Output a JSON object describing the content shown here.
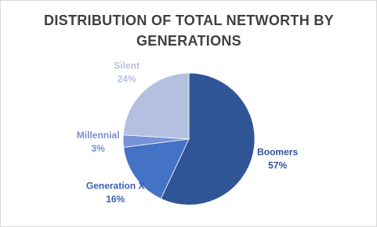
{
  "chart_data": {
    "type": "pie",
    "title": "DISTRIBUTION OF TOTAL NETWORTH BY GENERATIONS",
    "categories": [
      "Boomers",
      "Generation X",
      "Millennial",
      "Silent"
    ],
    "values": [
      57,
      16,
      3,
      24
    ],
    "value_labels": [
      "57%",
      "16%",
      "3%",
      "24%"
    ],
    "colors": [
      "#2f5597",
      "#4472c4",
      "#7891d6",
      "#b4c0e0"
    ],
    "label_colors": [
      "#2f5597",
      "#3a63b0",
      "#7891d6",
      "#b4c0e0"
    ]
  }
}
